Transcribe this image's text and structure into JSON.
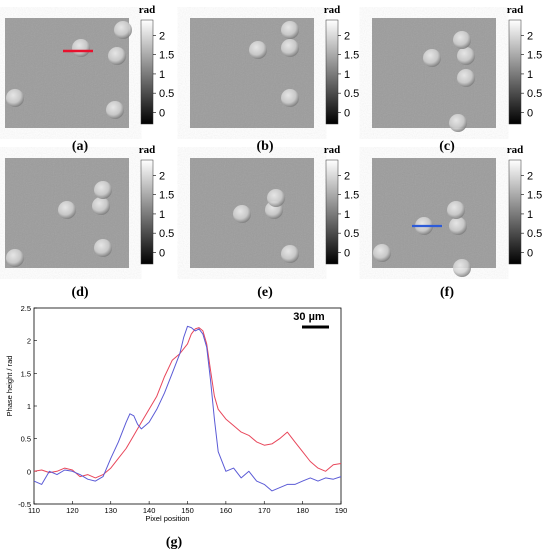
{
  "panels": [
    {
      "label": "(a)",
      "line": "red"
    },
    {
      "label": "(b)"
    },
    {
      "label": "(c)"
    },
    {
      "label": "(d)"
    },
    {
      "label": "(e)"
    },
    {
      "label": "(f)",
      "line": "blue"
    }
  ],
  "colorbar": {
    "unit": "rad",
    "ticks": [
      "2",
      "1.5",
      "1",
      "0.5",
      "0"
    ],
    "tick_values": [
      2,
      1.5,
      1,
      0.5,
      0
    ],
    "range": [
      -0.3,
      2.4
    ],
    "colormap": "gray"
  },
  "chart_data": {
    "type": "line",
    "panel_label": "(g)",
    "xlabel": "Pixel position",
    "ylabel": "Phase height / rad",
    "xlim": [
      110,
      190
    ],
    "ylim": [
      -0.5,
      2.5
    ],
    "xticks": [
      "110",
      "120",
      "130",
      "140",
      "150",
      "160",
      "170",
      "180",
      "190"
    ],
    "yticks": [
      "-0.5",
      "0",
      "0.5",
      "1",
      "1.5",
      "2",
      "2.5"
    ],
    "scale_bar_label": "30 µm",
    "series": [
      {
        "color": "#e8475b",
        "x": [
          110,
          112,
          114,
          116,
          118,
          120,
          122,
          124,
          126,
          128,
          130,
          132,
          134,
          136,
          138,
          140,
          142,
          144,
          146,
          148,
          150,
          151,
          152,
          153,
          154,
          155,
          156,
          157,
          158,
          160,
          162,
          164,
          166,
          168,
          170,
          172,
          174,
          176,
          178,
          180,
          182,
          184,
          186,
          188,
          190
        ],
        "y": [
          0.0,
          0.02,
          -0.02,
          0.0,
          0.05,
          0.02,
          -0.08,
          -0.05,
          -0.1,
          -0.05,
          0.05,
          0.2,
          0.35,
          0.55,
          0.75,
          0.95,
          1.15,
          1.45,
          1.7,
          1.8,
          1.95,
          2.1,
          2.18,
          2.2,
          2.15,
          1.95,
          1.55,
          1.15,
          0.95,
          0.8,
          0.7,
          0.6,
          0.55,
          0.45,
          0.4,
          0.42,
          0.5,
          0.6,
          0.45,
          0.3,
          0.15,
          0.05,
          0.0,
          0.1,
          0.12
        ]
      },
      {
        "color": "#5b5bd6",
        "x": [
          110,
          112,
          114,
          116,
          118,
          120,
          122,
          124,
          126,
          128,
          130,
          132,
          134,
          135,
          136,
          137,
          138,
          140,
          142,
          144,
          146,
          148,
          149,
          150,
          151,
          152,
          153,
          154,
          155,
          156,
          157,
          158,
          160,
          162,
          164,
          166,
          168,
          170,
          172,
          174,
          176,
          178,
          180,
          182,
          184,
          186,
          188,
          190
        ],
        "y": [
          -0.15,
          -0.2,
          0.0,
          -0.05,
          0.02,
          0.0,
          -0.05,
          -0.12,
          -0.15,
          -0.08,
          0.2,
          0.45,
          0.75,
          0.88,
          0.85,
          0.72,
          0.65,
          0.75,
          0.95,
          1.2,
          1.5,
          1.8,
          2.05,
          2.22,
          2.2,
          2.15,
          2.18,
          2.1,
          1.9,
          1.4,
          0.8,
          0.3,
          0.0,
          0.05,
          -0.1,
          0.0,
          -0.15,
          -0.2,
          -0.3,
          -0.25,
          -0.2,
          -0.2,
          -0.15,
          -0.1,
          -0.15,
          -0.1,
          -0.12,
          -0.08
        ]
      }
    ]
  }
}
